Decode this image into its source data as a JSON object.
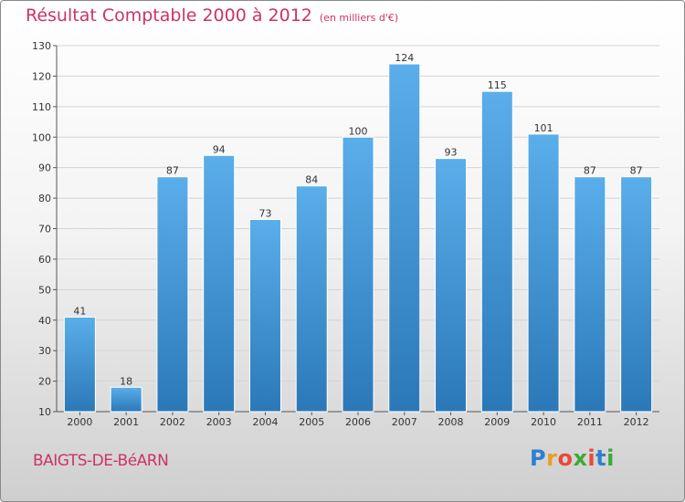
{
  "chart_data": {
    "type": "bar",
    "title": "Résultat Comptable 2000 à 2012",
    "subtitle": "(en milliers d'€)",
    "categories": [
      "2000",
      "2001",
      "2002",
      "2003",
      "2004",
      "2005",
      "2006",
      "2007",
      "2008",
      "2009",
      "2010",
      "2011",
      "2012"
    ],
    "values": [
      41,
      18,
      87,
      94,
      73,
      84,
      100,
      124,
      93,
      115,
      101,
      87,
      87
    ],
    "ylim": [
      10,
      130
    ],
    "yticks": [
      "10",
      "20",
      "30",
      "40",
      "50",
      "60",
      "70",
      "80",
      "90",
      "100",
      "110",
      "120",
      "130"
    ],
    "xlabel": "",
    "ylabel": "",
    "grid": true,
    "bar_color_top": "#5aaeea",
    "bar_color_bottom": "#2b78b8"
  },
  "footer": {
    "commune": "BAIGTS-DE-BéARN",
    "logo_letters": [
      "P",
      "r",
      "o",
      "x",
      "i",
      "t",
      "i"
    ],
    "logo_colors": [
      "#2f7fd0",
      "#e8a020",
      "#e84a3a",
      "#3aaa35",
      "#e84a3a",
      "#2f7fd0",
      "#3aaa35"
    ]
  }
}
